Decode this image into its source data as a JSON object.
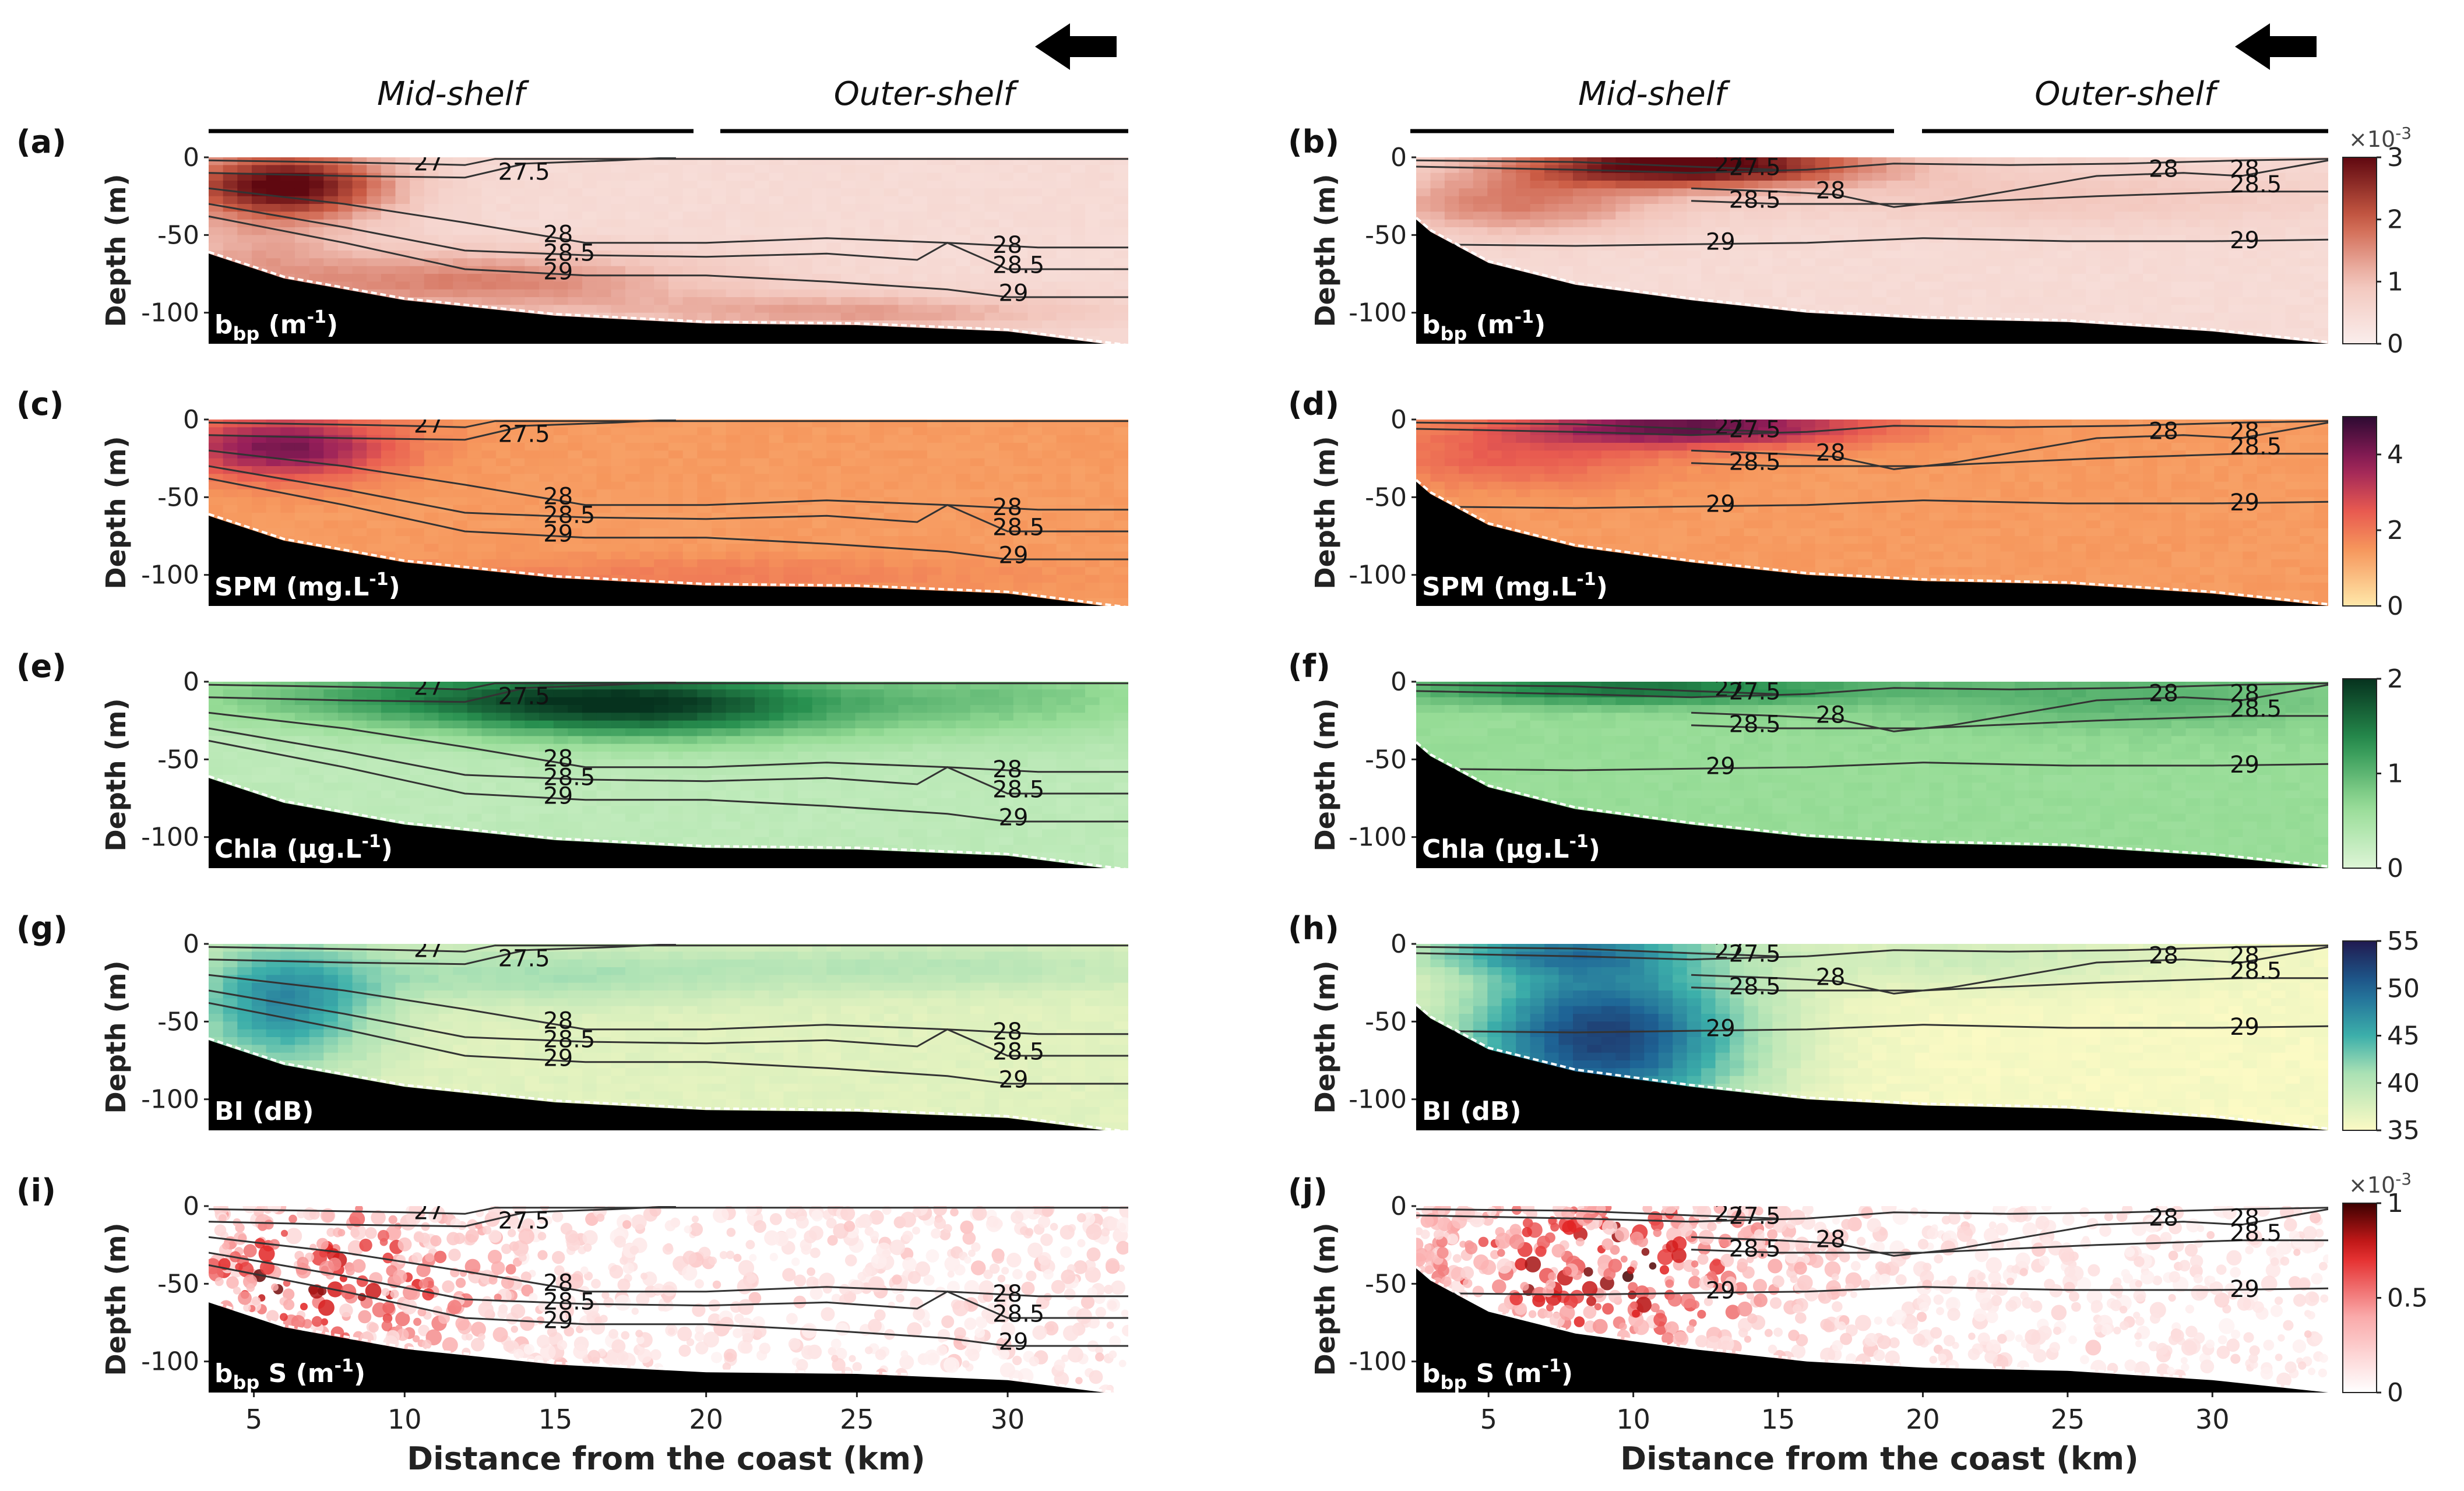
{
  "figure": {
    "region_labels": {
      "mid": "Mid-shelf",
      "outer": "Outer-shelf"
    },
    "ylabel": "Depth (m)",
    "xlabel": "Distance from the coast (km)"
  },
  "chart_data": [
    {
      "type": "heatmap",
      "panel": "(a)",
      "variable": "b_bp (m^-1)",
      "quantity": "bbp",
      "unit_label": "(m",
      "unit_sup": "-1",
      "unit_tail": ")",
      "name_main": "b",
      "name_sub": "bp",
      "transect": "A",
      "colormap": "reds",
      "show_top_labels": true,
      "xlim": [
        3.5,
        34
      ],
      "ylim": [
        -120,
        0
      ],
      "yticks": [
        0,
        -50,
        -100
      ]
    },
    {
      "type": "heatmap",
      "panel": "(b)",
      "variable": "b_bp (m^-1)",
      "quantity": "bbp",
      "unit_label": "(m",
      "unit_sup": "-1",
      "unit_tail": ")",
      "name_main": "b",
      "name_sub": "bp",
      "transect": "B",
      "colormap": "reds",
      "show_top_labels": true,
      "xlim": [
        2.5,
        34
      ],
      "ylim": [
        -120,
        0
      ],
      "yticks": [
        0,
        -50,
        -100
      ],
      "colorbar": {
        "ticks": [
          "0",
          "1",
          "2",
          "3"
        ],
        "vmin": 0,
        "vmax": 3,
        "scale_label": "×10",
        "scale_exp": "-3"
      }
    },
    {
      "type": "heatmap",
      "panel": "(c)",
      "variable": "SPM (mg.L^-1)",
      "quantity": "spm",
      "unit_label": "SPM (mg.L",
      "unit_sup": "-1",
      "unit_tail": ")",
      "transect": "A",
      "colormap": "magma",
      "xlim": [
        3.5,
        34
      ],
      "ylim": [
        -120,
        0
      ],
      "yticks": [
        0,
        -50,
        -100
      ]
    },
    {
      "type": "heatmap",
      "panel": "(d)",
      "variable": "SPM (mg.L^-1)",
      "quantity": "spm",
      "unit_label": "SPM (mg.L",
      "unit_sup": "-1",
      "unit_tail": ")",
      "transect": "B",
      "colormap": "magma",
      "xlim": [
        2.5,
        34
      ],
      "ylim": [
        -120,
        0
      ],
      "yticks": [
        0,
        -50,
        -100
      ],
      "colorbar": {
        "ticks": [
          "0",
          "2",
          "4"
        ],
        "vmin": 0,
        "vmax": 5
      }
    },
    {
      "type": "heatmap",
      "panel": "(e)",
      "variable": "Chla (µg.L^-1)",
      "quantity": "chla",
      "unit_label": "Chla (μg.L",
      "unit_sup": "-1",
      "unit_tail": ")",
      "transect": "A",
      "colormap": "greens",
      "xlim": [
        3.5,
        34
      ],
      "ylim": [
        -120,
        0
      ],
      "yticks": [
        0,
        -50,
        -100
      ]
    },
    {
      "type": "heatmap",
      "panel": "(f)",
      "variable": "Chla (µg.L^-1)",
      "quantity": "chla",
      "unit_label": "Chla (μg.L",
      "unit_sup": "-1",
      "unit_tail": ")",
      "transect": "B",
      "colormap": "greens",
      "xlim": [
        2.5,
        34
      ],
      "ylim": [
        -120,
        0
      ],
      "yticks": [
        0,
        -50,
        -100
      ],
      "colorbar": {
        "ticks": [
          "0",
          "1",
          "2"
        ],
        "vmin": 0,
        "vmax": 2
      }
    },
    {
      "type": "heatmap",
      "panel": "(g)",
      "variable": "BI (dB)",
      "quantity": "bi",
      "unit_label": "BI (dB)",
      "transect": "A",
      "colormap": "ygb",
      "xlim": [
        3.5,
        34
      ],
      "ylim": [
        -120,
        0
      ],
      "yticks": [
        0,
        -50,
        -100
      ]
    },
    {
      "type": "heatmap",
      "panel": "(h)",
      "variable": "BI (dB)",
      "quantity": "bi",
      "unit_label": "BI (dB)",
      "transect": "B",
      "colormap": "ygb",
      "xlim": [
        2.5,
        34
      ],
      "ylim": [
        -120,
        0
      ],
      "yticks": [
        0,
        -50,
        -100
      ],
      "colorbar": {
        "ticks": [
          "35",
          "40",
          "45",
          "50",
          "55"
        ],
        "vmin": 35,
        "vmax": 55
      }
    },
    {
      "type": "scatter",
      "panel": "(i)",
      "variable": "b_bp S (m^-1)",
      "quantity": "bbps",
      "unit_label": "S (m",
      "unit_sup": "-1",
      "unit_tail": ")",
      "name_main": "b",
      "name_sub": "bp",
      "transect": "A",
      "colormap": "whitered",
      "xlim": [
        3.5,
        34
      ],
      "ylim": [
        -120,
        0
      ],
      "yticks": [
        0,
        -50,
        -100
      ],
      "xticks": [
        5,
        10,
        15,
        20,
        25,
        30
      ]
    },
    {
      "type": "scatter",
      "panel": "(j)",
      "variable": "b_bp S (m^-1)",
      "quantity": "bbps",
      "unit_label": "S (m",
      "unit_sup": "-1",
      "unit_tail": ")",
      "name_main": "b",
      "name_sub": "bp",
      "transect": "B",
      "colormap": "whitered",
      "xlim": [
        2.5,
        34
      ],
      "ylim": [
        -120,
        0
      ],
      "yticks": [
        0,
        -50,
        -100
      ],
      "xticks": [
        5,
        10,
        15,
        20,
        25,
        30
      ],
      "colorbar": {
        "ticks": [
          "0",
          "0.5",
          "1"
        ],
        "vmin": 0,
        "vmax": 1,
        "scale_label": "×10",
        "scale_exp": "-3"
      }
    }
  ],
  "transects": {
    "A": {
      "bottom_depth": [
        [
          3.5,
          -62
        ],
        [
          6,
          -78
        ],
        [
          10,
          -92
        ],
        [
          15,
          -102
        ],
        [
          20,
          -107
        ],
        [
          25,
          -108
        ],
        [
          30,
          -112
        ],
        [
          34,
          -122
        ]
      ],
      "isolines": [
        {
          "label": "27",
          "points": [
            [
              3.5,
              -2
            ],
            [
              7,
              -3
            ],
            [
              10,
              -4
            ],
            [
              12,
              -5
            ],
            [
              13,
              -1
            ],
            [
              18,
              -1
            ],
            [
              25,
              -1
            ],
            [
              34,
              -1
            ]
          ],
          "label_at": [
            [
              10.3,
              -4
            ]
          ]
        },
        {
          "label": "27.5",
          "points": [
            [
              3.5,
              -10
            ],
            [
              8,
              -12
            ],
            [
              12,
              -13
            ],
            [
              14,
              -4
            ],
            [
              17,
              -2
            ],
            [
              19,
              0
            ]
          ],
          "label_at": [
            [
              13.1,
              -10
            ]
          ]
        },
        {
          "label": "28",
          "points": [
            [
              3.5,
              -20
            ],
            [
              8,
              -30
            ],
            [
              12,
              -42
            ],
            [
              16,
              -55
            ],
            [
              20,
              -55
            ],
            [
              24,
              -52
            ],
            [
              28,
              -55
            ],
            [
              31,
              -58
            ],
            [
              34,
              -58
            ]
          ],
          "label_at": [
            [
              14.6,
              -50
            ],
            [
              29.5,
              -57
            ]
          ]
        },
        {
          "label": "28.5",
          "points": [
            [
              3.5,
              -30
            ],
            [
              8,
              -45
            ],
            [
              12,
              -60
            ],
            [
              16,
              -63
            ],
            [
              20,
              -64
            ],
            [
              24,
              -62
            ],
            [
              27,
              -66
            ],
            [
              28,
              -55
            ],
            [
              30,
              -72
            ],
            [
              34,
              -72
            ]
          ],
          "label_at": [
            [
              14.6,
              -62
            ],
            [
              29.5,
              -70
            ]
          ]
        },
        {
          "label": "29",
          "points": [
            [
              3.5,
              -38
            ],
            [
              8,
              -55
            ],
            [
              12,
              -72
            ],
            [
              16,
              -76
            ],
            [
              20,
              -76
            ],
            [
              24,
              -80
            ],
            [
              28,
              -85
            ],
            [
              30,
              -90
            ],
            [
              34,
              -90
            ]
          ],
          "label_at": [
            [
              14.6,
              -74
            ],
            [
              29.7,
              -88
            ]
          ]
        }
      ]
    },
    "B": {
      "bottom_depth": [
        [
          2.5,
          -40
        ],
        [
          3,
          -48
        ],
        [
          5,
          -68
        ],
        [
          8,
          -82
        ],
        [
          12,
          -92
        ],
        [
          16,
          -100
        ],
        [
          20,
          -104
        ],
        [
          25,
          -106
        ],
        [
          30,
          -112
        ],
        [
          34,
          -120
        ]
      ],
      "isolines": [
        {
          "label": "27",
          "points": [
            [
              2.5,
              -2
            ],
            [
              8,
              -3
            ],
            [
              12,
              -6
            ],
            [
              15,
              -8
            ]
          ],
          "label_at": [
            [
              12.8,
              -5
            ]
          ]
        },
        {
          "label": "27.5",
          "points": [
            [
              2.5,
              -6
            ],
            [
              8,
              -8
            ],
            [
              12,
              -10
            ],
            [
              16,
              -8
            ],
            [
              19,
              -4
            ],
            [
              23,
              -5
            ],
            [
              27,
              -4
            ],
            [
              31,
              -2
            ],
            [
              34,
              -1
            ]
          ],
          "label_at": [
            [
              13.3,
              -7
            ]
          ]
        },
        {
          "label": "28",
          "points": [
            [
              12,
              -20
            ],
            [
              15,
              -22
            ],
            [
              17,
              -24
            ],
            [
              19,
              -32
            ],
            [
              21,
              -28
            ],
            [
              26,
              -12
            ],
            [
              29,
              -10
            ],
            [
              31,
              -12
            ],
            [
              34,
              -2
            ]
          ],
          "label_at": [
            [
              16.3,
              -22
            ],
            [
              27.8,
              -8
            ],
            [
              30.6,
              -8
            ]
          ]
        },
        {
          "label": "28.5",
          "points": [
            [
              12,
              -28
            ],
            [
              15,
              -30
            ],
            [
              20,
              -30
            ],
            [
              26,
              -25
            ],
            [
              31,
              -22
            ],
            [
              34,
              -22
            ]
          ],
          "label_at": [
            [
              13.3,
              -28
            ],
            [
              30.6,
              -18
            ]
          ]
        },
        {
          "label": "29",
          "points": [
            [
              2.5,
              -56
            ],
            [
              8,
              -57
            ],
            [
              12,
              -56
            ],
            [
              16,
              -55
            ],
            [
              20,
              -52
            ],
            [
              25,
              -54
            ],
            [
              30,
              -54
            ],
            [
              34,
              -53
            ]
          ],
          "label_at": [
            [
              12.5,
              -55
            ],
            [
              30.6,
              -54
            ]
          ]
        }
      ]
    }
  }
}
